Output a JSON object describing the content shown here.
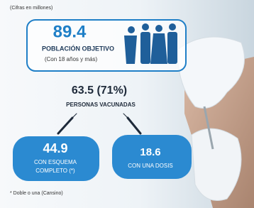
{
  "note": "(Cifras en millones)",
  "target": {
    "value": 89.4,
    "label": "POBLACIÓN OBJETIVO",
    "sublabel": "(Con 18 años y más)"
  },
  "vaccinated": {
    "value": 63.5,
    "percent": "(71%)",
    "label": "PERSONAS VACUNADAS"
  },
  "complete": {
    "value": 44.9,
    "label_lines": [
      "CON ESQUEMA",
      "COMPLETO (*)"
    ]
  },
  "one_dose": {
    "value": 18.6,
    "label": "CON UNA DOSIS"
  },
  "footnote": "* Doble o una (Cansino)"
}
